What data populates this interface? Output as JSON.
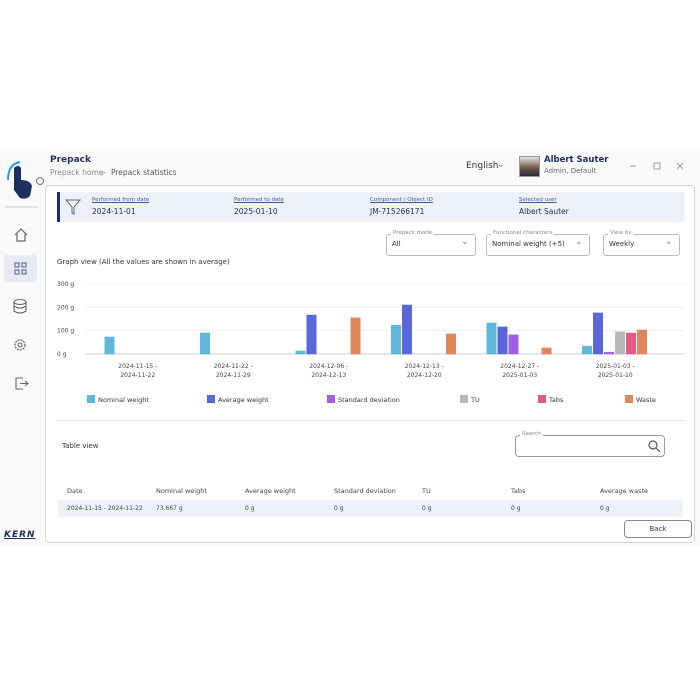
{
  "sidebar": {
    "brand": "KERN"
  },
  "header": {
    "title": "Prepack",
    "breadcrumb": [
      "Prepack home",
      "Prepack statistics"
    ],
    "language": "English",
    "user_name": "Albert Sauter",
    "user_role": "Admin, Default"
  },
  "filters": [
    {
      "label": "Performed from date",
      "value": "2024-11-01"
    },
    {
      "label": "Performed to date",
      "value": "2025-01-10"
    },
    {
      "label": "Component / Object ID",
      "value": "JM-715266171"
    },
    {
      "label": "Selected user",
      "value": "Albert Sauter"
    }
  ],
  "selects": [
    {
      "label": "Prepack mode",
      "value": "All"
    },
    {
      "label": "Functional characters",
      "value": "Nominal weight (+5)"
    },
    {
      "label": "View by",
      "value": "Weekly"
    }
  ],
  "chart_data": {
    "type": "bar",
    "title": "Graph view (All the values are shown in average)",
    "categories": [
      "2024-11-15 -\n2024-11-22",
      "2024-11-22 -\n2024-11-29",
      "2024-12-06 -\n2024-12-13",
      "2024-12-13 -\n2024-12-20",
      "2024-12-27 -\n2025-01-03",
      "2025-01-03 -\n2025-01-10"
    ],
    "series": [
      {
        "name": "Nominal weight",
        "color": "#5fb8dc",
        "values": [
          73,
          90,
          13,
          124,
          133,
          34
        ]
      },
      {
        "name": "Average weight",
        "color": "#5a67d8",
        "values": [
          0,
          0,
          167,
          210,
          116,
          176
        ]
      },
      {
        "name": "Standard deviation",
        "color": "#a05fe0",
        "values": [
          0,
          0,
          0,
          0,
          82,
          8
        ]
      },
      {
        "name": "TU",
        "color": "#b8b8b8",
        "values": [
          0,
          0,
          0,
          0,
          0,
          95
        ]
      },
      {
        "name": "Tabs",
        "color": "#e05a84",
        "values": [
          0,
          0,
          0,
          0,
          0,
          90
        ]
      },
      {
        "name": "Waste",
        "color": "#e0865a",
        "values": [
          0,
          0,
          155,
          86,
          26,
          103
        ]
      }
    ],
    "ylim": [
      0,
      300
    ],
    "yticks": [
      {
        "value": 0,
        "label": "0 g"
      },
      {
        "value": 100,
        "label": "100 g"
      },
      {
        "value": 200,
        "label": "200 g"
      },
      {
        "value": 300,
        "label": "300 g"
      }
    ],
    "grid": true
  },
  "table": {
    "title": "Table view",
    "search_label": "Search",
    "columns": [
      "Date",
      "Nominal weight",
      "Average weight",
      "Standard deviation",
      "TU",
      "Tabs",
      "Average waste"
    ],
    "rows": [
      [
        "2024-11-15 - 2024-11-22",
        "73.667 g",
        "0 g",
        "0 g",
        "0 g",
        "0 g",
        "0 g"
      ]
    ]
  },
  "back_button": "Back"
}
